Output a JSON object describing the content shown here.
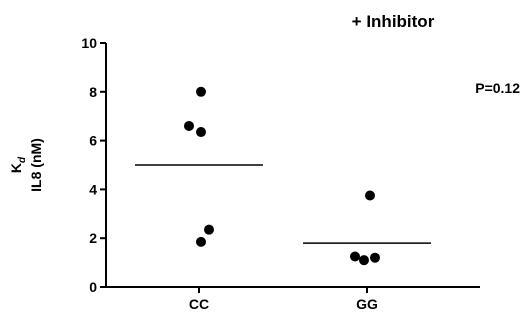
{
  "chart_data": {
    "type": "scatter",
    "title": "+ Inhibitor",
    "ylabel_line1": "K",
    "ylabel_subscript": "d",
    "ylabel_line2": "IL8 (nM)",
    "xlabel": "",
    "categories": [
      "CC",
      "GG"
    ],
    "ylim": [
      0,
      10
    ],
    "yticks": [
      0,
      2,
      4,
      6,
      8,
      10
    ],
    "grid": false,
    "annotation": "P=0.12",
    "series": [
      {
        "category": "CC",
        "mean": 5.0,
        "points": [
          {
            "x_offset": 0.02,
            "y": 8.0
          },
          {
            "x_offset": -0.1,
            "y": 6.6
          },
          {
            "x_offset": 0.02,
            "y": 6.35
          },
          {
            "x_offset": 0.1,
            "y": 2.35
          },
          {
            "x_offset": 0.02,
            "y": 1.85
          }
        ]
      },
      {
        "category": "GG",
        "mean": 1.8,
        "points": [
          {
            "x_offset": 0.03,
            "y": 3.75
          },
          {
            "x_offset": -0.12,
            "y": 1.25
          },
          {
            "x_offset": -0.03,
            "y": 1.1
          },
          {
            "x_offset": 0.08,
            "y": 1.2
          }
        ]
      }
    ]
  }
}
